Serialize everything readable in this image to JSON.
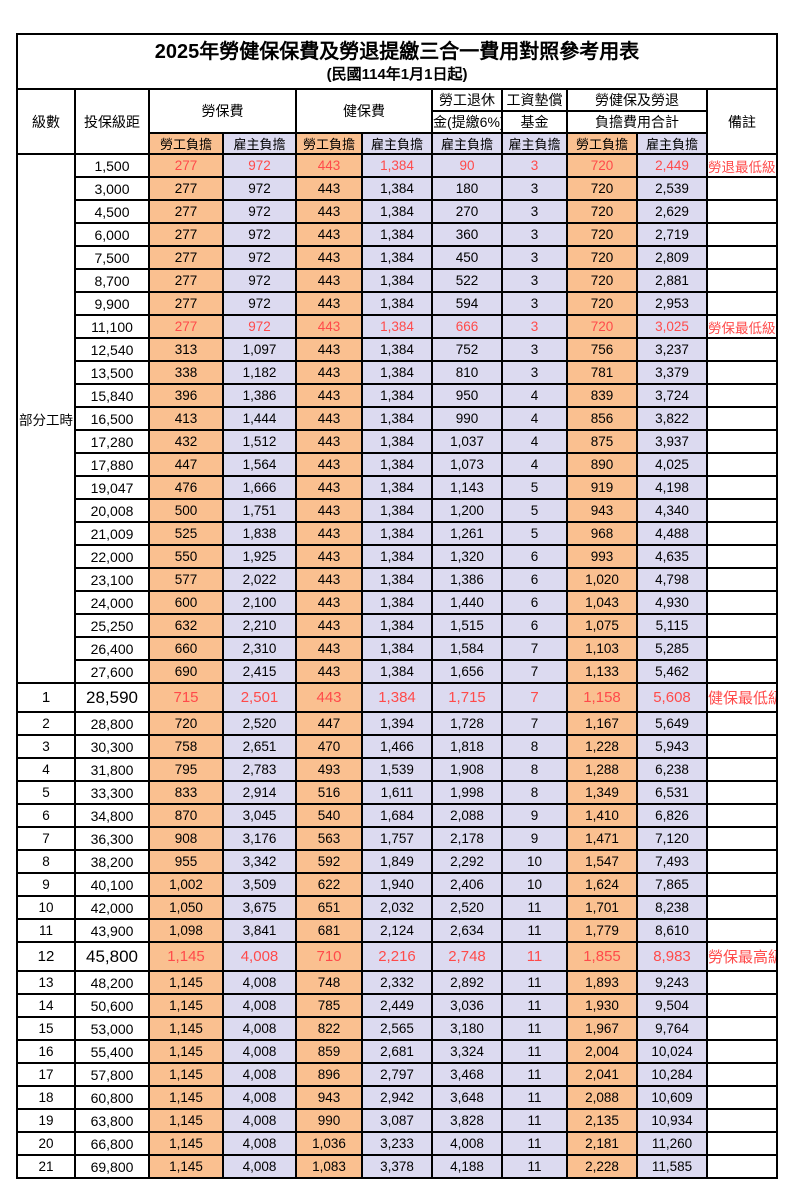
{
  "title": "2025年勞健保保費及勞退提繳三合一費用對照參考用表",
  "subtitle": "(民國114年1月1日起)",
  "header": {
    "level": "級數",
    "bracket": "投保級距",
    "labor_ins": "勞保費",
    "health_ins": "健保費",
    "pension_line1": "勞工退休",
    "pension_line2": "金(提繳6%)",
    "wage_fund_line1": "工資墊償",
    "wage_fund_line2": "基金",
    "total_line1": "勞健保及勞退",
    "total_line2": "負擔費用合計",
    "remark": "備註",
    "employee_label": "勞工負擔",
    "employer_label": "雇主負擔"
  },
  "part_time_label": "部分工時",
  "colors": {
    "employee_bg": "#FAC090",
    "employer_bg": "#DCDAF0",
    "highlight_text": "#FF4A4A",
    "border": "#000000"
  },
  "rows": [
    {
      "level": "",
      "bracket": "1,500",
      "values": [
        "277",
        "972",
        "443",
        "1,384",
        "90",
        "3",
        "720",
        "2,449"
      ],
      "remark": "勞退最低級距",
      "red": true,
      "emph": false
    },
    {
      "level": "",
      "bracket": "3,000",
      "values": [
        "277",
        "972",
        "443",
        "1,384",
        "180",
        "3",
        "720",
        "2,539"
      ],
      "remark": "",
      "red": false,
      "emph": false
    },
    {
      "level": "",
      "bracket": "4,500",
      "values": [
        "277",
        "972",
        "443",
        "1,384",
        "270",
        "3",
        "720",
        "2,629"
      ],
      "remark": "",
      "red": false,
      "emph": false
    },
    {
      "level": "",
      "bracket": "6,000",
      "values": [
        "277",
        "972",
        "443",
        "1,384",
        "360",
        "3",
        "720",
        "2,719"
      ],
      "remark": "",
      "red": false,
      "emph": false
    },
    {
      "level": "",
      "bracket": "7,500",
      "values": [
        "277",
        "972",
        "443",
        "1,384",
        "450",
        "3",
        "720",
        "2,809"
      ],
      "remark": "",
      "red": false,
      "emph": false
    },
    {
      "level": "",
      "bracket": "8,700",
      "values": [
        "277",
        "972",
        "443",
        "1,384",
        "522",
        "3",
        "720",
        "2,881"
      ],
      "remark": "",
      "red": false,
      "emph": false
    },
    {
      "level": "",
      "bracket": "9,900",
      "values": [
        "277",
        "972",
        "443",
        "1,384",
        "594",
        "3",
        "720",
        "2,953"
      ],
      "remark": "",
      "red": false,
      "emph": false
    },
    {
      "level": "",
      "bracket": "11,100",
      "values": [
        "277",
        "972",
        "443",
        "1,384",
        "666",
        "3",
        "720",
        "3,025"
      ],
      "remark": "勞保最低級距",
      "red": true,
      "emph": false
    },
    {
      "level": "",
      "bracket": "12,540",
      "values": [
        "313",
        "1,097",
        "443",
        "1,384",
        "752",
        "3",
        "756",
        "3,237"
      ],
      "remark": "",
      "red": false,
      "emph": false
    },
    {
      "level": "",
      "bracket": "13,500",
      "values": [
        "338",
        "1,182",
        "443",
        "1,384",
        "810",
        "3",
        "781",
        "3,379"
      ],
      "remark": "",
      "red": false,
      "emph": false
    },
    {
      "level": "",
      "bracket": "15,840",
      "values": [
        "396",
        "1,386",
        "443",
        "1,384",
        "950",
        "4",
        "839",
        "3,724"
      ],
      "remark": "",
      "red": false,
      "emph": false
    },
    {
      "level": "",
      "bracket": "16,500",
      "values": [
        "413",
        "1,444",
        "443",
        "1,384",
        "990",
        "4",
        "856",
        "3,822"
      ],
      "remark": "",
      "red": false,
      "emph": false
    },
    {
      "level": "",
      "bracket": "17,280",
      "values": [
        "432",
        "1,512",
        "443",
        "1,384",
        "1,037",
        "4",
        "875",
        "3,937"
      ],
      "remark": "",
      "red": false,
      "emph": false
    },
    {
      "level": "",
      "bracket": "17,880",
      "values": [
        "447",
        "1,564",
        "443",
        "1,384",
        "1,073",
        "4",
        "890",
        "4,025"
      ],
      "remark": "",
      "red": false,
      "emph": false
    },
    {
      "level": "",
      "bracket": "19,047",
      "values": [
        "476",
        "1,666",
        "443",
        "1,384",
        "1,143",
        "5",
        "919",
        "4,198"
      ],
      "remark": "",
      "red": false,
      "emph": false
    },
    {
      "level": "",
      "bracket": "20,008",
      "values": [
        "500",
        "1,751",
        "443",
        "1,384",
        "1,200",
        "5",
        "943",
        "4,340"
      ],
      "remark": "",
      "red": false,
      "emph": false
    },
    {
      "level": "",
      "bracket": "21,009",
      "values": [
        "525",
        "1,838",
        "443",
        "1,384",
        "1,261",
        "5",
        "968",
        "4,488"
      ],
      "remark": "",
      "red": false,
      "emph": false
    },
    {
      "level": "",
      "bracket": "22,000",
      "values": [
        "550",
        "1,925",
        "443",
        "1,384",
        "1,320",
        "6",
        "993",
        "4,635"
      ],
      "remark": "",
      "red": false,
      "emph": false
    },
    {
      "level": "",
      "bracket": "23,100",
      "values": [
        "577",
        "2,022",
        "443",
        "1,384",
        "1,386",
        "6",
        "1,020",
        "4,798"
      ],
      "remark": "",
      "red": false,
      "emph": false
    },
    {
      "level": "",
      "bracket": "24,000",
      "values": [
        "600",
        "2,100",
        "443",
        "1,384",
        "1,440",
        "6",
        "1,043",
        "4,930"
      ],
      "remark": "",
      "red": false,
      "emph": false
    },
    {
      "level": "",
      "bracket": "25,250",
      "values": [
        "632",
        "2,210",
        "443",
        "1,384",
        "1,515",
        "6",
        "1,075",
        "5,115"
      ],
      "remark": "",
      "red": false,
      "emph": false
    },
    {
      "level": "",
      "bracket": "26,400",
      "values": [
        "660",
        "2,310",
        "443",
        "1,384",
        "1,584",
        "7",
        "1,103",
        "5,285"
      ],
      "remark": "",
      "red": false,
      "emph": false
    },
    {
      "level": "",
      "bracket": "27,600",
      "values": [
        "690",
        "2,415",
        "443",
        "1,384",
        "1,656",
        "7",
        "1,133",
        "5,462"
      ],
      "remark": "",
      "red": false,
      "emph": false
    },
    {
      "level": "1",
      "bracket": "28,590",
      "values": [
        "715",
        "2,501",
        "443",
        "1,384",
        "1,715",
        "7",
        "1,158",
        "5,608"
      ],
      "remark": "健保最低級距",
      "red": true,
      "emph": true
    },
    {
      "level": "2",
      "bracket": "28,800",
      "values": [
        "720",
        "2,520",
        "447",
        "1,394",
        "1,728",
        "7",
        "1,167",
        "5,649"
      ],
      "remark": "",
      "red": false,
      "emph": false
    },
    {
      "level": "3",
      "bracket": "30,300",
      "values": [
        "758",
        "2,651",
        "470",
        "1,466",
        "1,818",
        "8",
        "1,228",
        "5,943"
      ],
      "remark": "",
      "red": false,
      "emph": false
    },
    {
      "level": "4",
      "bracket": "31,800",
      "values": [
        "795",
        "2,783",
        "493",
        "1,539",
        "1,908",
        "8",
        "1,288",
        "6,238"
      ],
      "remark": "",
      "red": false,
      "emph": false
    },
    {
      "level": "5",
      "bracket": "33,300",
      "values": [
        "833",
        "2,914",
        "516",
        "1,611",
        "1,998",
        "8",
        "1,349",
        "6,531"
      ],
      "remark": "",
      "red": false,
      "emph": false
    },
    {
      "level": "6",
      "bracket": "34,800",
      "values": [
        "870",
        "3,045",
        "540",
        "1,684",
        "2,088",
        "9",
        "1,410",
        "6,826"
      ],
      "remark": "",
      "red": false,
      "emph": false
    },
    {
      "level": "7",
      "bracket": "36,300",
      "values": [
        "908",
        "3,176",
        "563",
        "1,757",
        "2,178",
        "9",
        "1,471",
        "7,120"
      ],
      "remark": "",
      "red": false,
      "emph": false
    },
    {
      "level": "8",
      "bracket": "38,200",
      "values": [
        "955",
        "3,342",
        "592",
        "1,849",
        "2,292",
        "10",
        "1,547",
        "7,493"
      ],
      "remark": "",
      "red": false,
      "emph": false
    },
    {
      "level": "9",
      "bracket": "40,100",
      "values": [
        "1,002",
        "3,509",
        "622",
        "1,940",
        "2,406",
        "10",
        "1,624",
        "7,865"
      ],
      "remark": "",
      "red": false,
      "emph": false
    },
    {
      "level": "10",
      "bracket": "42,000",
      "values": [
        "1,050",
        "3,675",
        "651",
        "2,032",
        "2,520",
        "11",
        "1,701",
        "8,238"
      ],
      "remark": "",
      "red": false,
      "emph": false
    },
    {
      "level": "11",
      "bracket": "43,900",
      "values": [
        "1,098",
        "3,841",
        "681",
        "2,124",
        "2,634",
        "11",
        "1,779",
        "8,610"
      ],
      "remark": "",
      "red": false,
      "emph": false
    },
    {
      "level": "12",
      "bracket": "45,800",
      "values": [
        "1,145",
        "4,008",
        "710",
        "2,216",
        "2,748",
        "11",
        "1,855",
        "8,983"
      ],
      "remark": "勞保最高級距",
      "red": true,
      "emph": true
    },
    {
      "level": "13",
      "bracket": "48,200",
      "values": [
        "1,145",
        "4,008",
        "748",
        "2,332",
        "2,892",
        "11",
        "1,893",
        "9,243"
      ],
      "remark": "",
      "red": false,
      "emph": false
    },
    {
      "level": "14",
      "bracket": "50,600",
      "values": [
        "1,145",
        "4,008",
        "785",
        "2,449",
        "3,036",
        "11",
        "1,930",
        "9,504"
      ],
      "remark": "",
      "red": false,
      "emph": false
    },
    {
      "level": "15",
      "bracket": "53,000",
      "values": [
        "1,145",
        "4,008",
        "822",
        "2,565",
        "3,180",
        "11",
        "1,967",
        "9,764"
      ],
      "remark": "",
      "red": false,
      "emph": false
    },
    {
      "level": "16",
      "bracket": "55,400",
      "values": [
        "1,145",
        "4,008",
        "859",
        "2,681",
        "3,324",
        "11",
        "2,004",
        "10,024"
      ],
      "remark": "",
      "red": false,
      "emph": false
    },
    {
      "level": "17",
      "bracket": "57,800",
      "values": [
        "1,145",
        "4,008",
        "896",
        "2,797",
        "3,468",
        "11",
        "2,041",
        "10,284"
      ],
      "remark": "",
      "red": false,
      "emph": false
    },
    {
      "level": "18",
      "bracket": "60,800",
      "values": [
        "1,145",
        "4,008",
        "943",
        "2,942",
        "3,648",
        "11",
        "2,088",
        "10,609"
      ],
      "remark": "",
      "red": false,
      "emph": false
    },
    {
      "level": "19",
      "bracket": "63,800",
      "values": [
        "1,145",
        "4,008",
        "990",
        "3,087",
        "3,828",
        "11",
        "2,135",
        "10,934"
      ],
      "remark": "",
      "red": false,
      "emph": false
    },
    {
      "level": "20",
      "bracket": "66,800",
      "values": [
        "1,145",
        "4,008",
        "1,036",
        "3,233",
        "4,008",
        "11",
        "2,181",
        "11,260"
      ],
      "remark": "",
      "red": false,
      "emph": false
    },
    {
      "level": "21",
      "bracket": "69,800",
      "values": [
        "1,145",
        "4,008",
        "1,083",
        "3,378",
        "4,188",
        "11",
        "2,228",
        "11,585"
      ],
      "remark": "",
      "red": false,
      "emph": false
    }
  ]
}
